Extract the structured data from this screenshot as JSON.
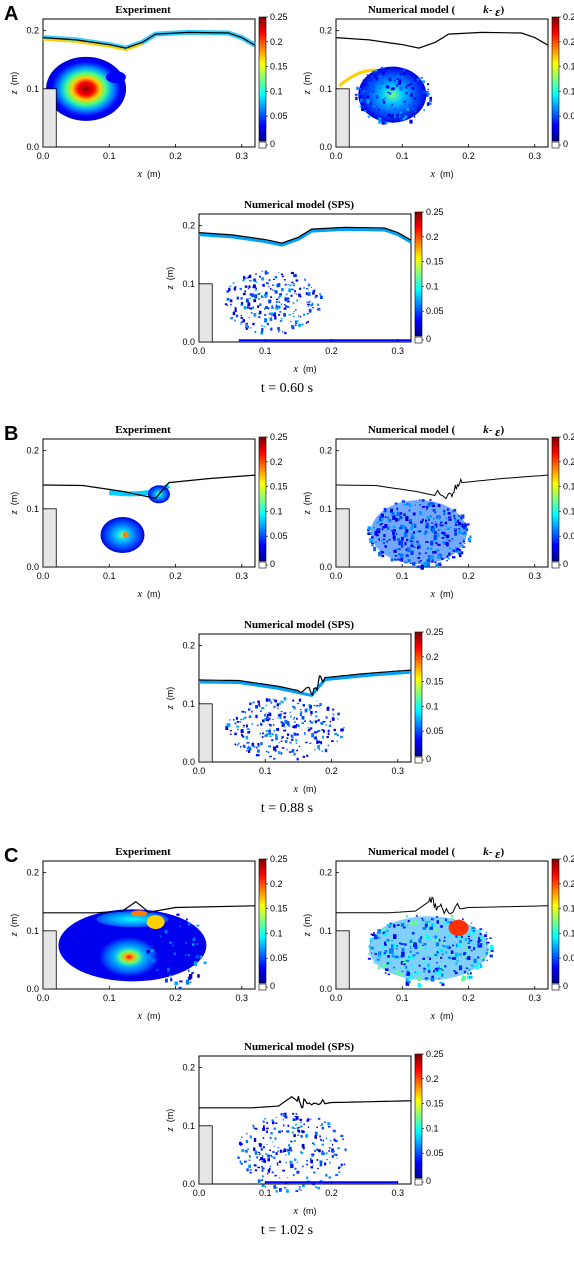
{
  "figure": {
    "colorbar": {
      "ticks": [
        "0.25",
        "0.2",
        "0.15",
        "0.1",
        "0.05",
        "0"
      ],
      "range": [
        0,
        0.25
      ],
      "colormap": [
        "#00008f",
        "#0000ff",
        "#0080ff",
        "#00ffff",
        "#80ff80",
        "#ffff00",
        "#ff8000",
        "#ff0000",
        "#800000"
      ]
    },
    "axes": {
      "x_ticks": [
        "0.0",
        "0.1",
        "0.2",
        "0.3"
      ],
      "z_ticks": [
        "0.0",
        "0.1",
        "0.2"
      ],
      "x_var": "x",
      "x_unit": "(m)",
      "z_var": "z",
      "z_unit": "(m)",
      "x_range": [
        0,
        0.32
      ],
      "z_range": [
        0,
        0.22
      ]
    },
    "panels": [
      {
        "letter": "A",
        "caption": "t = 0.60 s",
        "subplots": [
          {
            "title": "Experiment"
          },
          {
            "title": "Numerical model (",
            "title_k": "k",
            "title_dash": "- ",
            "title_eps": "ε",
            "title_close": ")"
          },
          {
            "title": "Numerical model (SPS)"
          }
        ]
      },
      {
        "letter": "B",
        "caption": "t = 0.88 s",
        "subplots": [
          {
            "title": "Experiment"
          },
          {
            "title": "Numerical model (",
            "title_k": "k",
            "title_dash": "- ",
            "title_eps": "ε",
            "title_close": ")"
          },
          {
            "title": "Numerical model (SPS)"
          }
        ]
      },
      {
        "letter": "C",
        "caption": "t = 1.02 s",
        "subplots": [
          {
            "title": "Experiment"
          },
          {
            "title": "Numerical model (",
            "title_k": "k",
            "title_dash": "- ",
            "title_eps": "ε",
            "title_close": ")"
          },
          {
            "title": "Numerical model (SPS)"
          }
        ]
      }
    ]
  },
  "chart_data": [
    {
      "panel": "A",
      "type": "heatmap",
      "x_range": [
        0,
        0.32
      ],
      "z_range": [
        0,
        0.22
      ],
      "step_height": 0.1,
      "free_surface": [
        [
          0,
          0.188
        ],
        [
          0.05,
          0.184
        ],
        [
          0.1,
          0.176
        ],
        [
          0.125,
          0.17
        ],
        [
          0.15,
          0.18
        ],
        [
          0.17,
          0.194
        ],
        [
          0.22,
          0.197
        ],
        [
          0.28,
          0.196
        ],
        [
          0.3,
          0.188
        ],
        [
          0.32,
          0.175
        ]
      ]
    },
    {
      "panel": "B",
      "type": "heatmap",
      "x_range": [
        0,
        0.32
      ],
      "z_range": [
        0,
        0.22
      ],
      "step_height": 0.1,
      "free_surface": [
        [
          0,
          0.141
        ],
        [
          0.06,
          0.14
        ],
        [
          0.12,
          0.13
        ],
        [
          0.17,
          0.118
        ],
        [
          0.19,
          0.145
        ],
        [
          0.25,
          0.152
        ],
        [
          0.32,
          0.158
        ]
      ]
    },
    {
      "panel": "C",
      "type": "heatmap",
      "x_range": [
        0,
        0.32
      ],
      "z_range": [
        0,
        0.22
      ],
      "step_height": 0.1,
      "free_surface": [
        [
          0,
          0.131
        ],
        [
          0.08,
          0.131
        ],
        [
          0.12,
          0.134
        ],
        [
          0.14,
          0.15
        ],
        [
          0.16,
          0.132
        ],
        [
          0.2,
          0.14
        ],
        [
          0.32,
          0.143
        ]
      ]
    }
  ]
}
